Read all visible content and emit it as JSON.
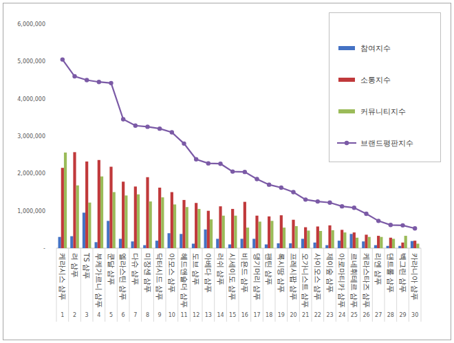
{
  "chart_data": {
    "type": "bar",
    "categories": [
      "케라시스 샴푸",
      "려 샴푸",
      "TS 샴푸",
      "부케가르니 샴푸",
      "쿤달 샴푸",
      "엘라스틴 샴푸",
      "다슈 샴푸",
      "미장센 샴푸",
      "닥터시드 샴푸",
      "아모스 샴푸",
      "헤드앤숄더 샴푸",
      "도브 샴푸",
      "아베다 샴푸",
      "러쉬 샴푸",
      "시세이도 샴푸",
      "비욘드 샴푸",
      "댕기머리 샴푸",
      "팬틴 샴푸",
      "록시땅 샴푸",
      "프레시팝 샴푸",
      "오가니스트 샴푸",
      "사이오스 샴푸",
      "제이숲 샴푸",
      "아로마티카 샴푸",
      "르네휘테르 샴푸",
      "케라스타즈 샴푸",
      "리엔 샴푸",
      "댄트롤 샴푸",
      "벡그린 샴푸",
      "카라니아 샴푸"
    ],
    "ranks": [
      1,
      2,
      3,
      4,
      5,
      6,
      7,
      8,
      9,
      10,
      11,
      12,
      13,
      14,
      15,
      16,
      17,
      18,
      19,
      20,
      21,
      22,
      23,
      24,
      25,
      26,
      27,
      28,
      29,
      30
    ],
    "series": [
      {
        "name": "참여지수",
        "type": "bar",
        "color": "#4472c4",
        "values": [
          300000,
          320000,
          950000,
          160000,
          730000,
          250000,
          180000,
          80000,
          200000,
          400000,
          380000,
          120000,
          500000,
          250000,
          100000,
          250000,
          250000,
          100000,
          130000,
          130000,
          250000,
          150000,
          80000,
          200000,
          380000,
          180000,
          80000,
          60000,
          60000,
          190000
        ]
      },
      {
        "name": "소통지수",
        "type": "bar",
        "color": "#c0393b",
        "values": [
          2150000,
          2570000,
          2320000,
          2360000,
          2180000,
          1780000,
          1650000,
          1900000,
          1620000,
          1500000,
          1290000,
          1210000,
          1000000,
          1120000,
          1050000,
          1240000,
          870000,
          850000,
          880000,
          760000,
          560000,
          580000,
          610000,
          490000,
          420000,
          360000,
          330000,
          280000,
          150000,
          200000
        ]
      },
      {
        "name": "커뮤니티지수",
        "type": "bar",
        "color": "#9bbb59",
        "values": [
          2560000,
          1680000,
          1220000,
          1920000,
          1500000,
          1410000,
          1440000,
          1250000,
          1360000,
          1170000,
          1100000,
          1050000,
          770000,
          870000,
          870000,
          550000,
          710000,
          730000,
          550000,
          590000,
          470000,
          460000,
          480000,
          420000,
          280000,
          300000,
          300000,
          250000,
          330000,
          120000
        ]
      },
      {
        "name": "브랜드평판지수",
        "type": "line",
        "color": "#7b5aa6",
        "marker": "circle",
        "values": [
          5050000,
          4600000,
          4500000,
          4450000,
          4420000,
          3450000,
          3280000,
          3250000,
          3200000,
          3100000,
          2800000,
          2380000,
          2270000,
          2260000,
          2050000,
          2040000,
          1850000,
          1700000,
          1620000,
          1500000,
          1300000,
          1250000,
          1220000,
          1120000,
          1080000,
          920000,
          730000,
          620000,
          610000,
          530000
        ]
      }
    ],
    "ylim": [
      0,
      6000000
    ],
    "yticks": [
      {
        "value": 0,
        "label": "-"
      },
      {
        "value": 1000000,
        "label": "1,000,000"
      },
      {
        "value": 2000000,
        "label": "2,000,000"
      },
      {
        "value": 3000000,
        "label": "3,000,000"
      },
      {
        "value": 4000000,
        "label": "4,000,000"
      },
      {
        "value": 5000000,
        "label": "5,000,000"
      },
      {
        "value": 6000000,
        "label": "6,000,000"
      }
    ],
    "grid": false,
    "legend": "top-right"
  }
}
